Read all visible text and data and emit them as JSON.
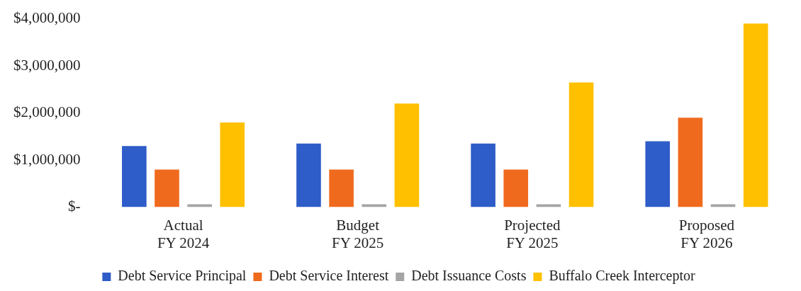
{
  "chart_data": {
    "type": "bar",
    "categories": [
      "Actual\nFY 2024",
      "Budget\nFY 2025",
      "Projected\nFY 2025",
      "Proposed\nFY 2026"
    ],
    "series": [
      {
        "name": "Debt Service Principal",
        "color": "#2e5cc8",
        "values": [
          1300000,
          1350000,
          1350000,
          1400000
        ]
      },
      {
        "name": "Debt Service Interest",
        "color": "#f06a1e",
        "values": [
          800000,
          800000,
          800000,
          1900000
        ]
      },
      {
        "name": "Debt Issuance Costs",
        "color": "#a5a5a5",
        "values": [
          0,
          0,
          0,
          0
        ]
      },
      {
        "name": "Buffalo Creek Interceptor",
        "color": "#ffc000",
        "values": [
          1800000,
          2200000,
          2650000,
          3900000
        ]
      }
    ],
    "ylim": [
      0,
      4000000
    ],
    "yticks": [
      {
        "value": 0,
        "label": "$-"
      },
      {
        "value": 1000000,
        "label": "$1,000,000"
      },
      {
        "value": 2000000,
        "label": "$2,000,000"
      },
      {
        "value": 3000000,
        "label": "$3,000,000"
      },
      {
        "value": 4000000,
        "label": "$4,000,000"
      }
    ],
    "grid": false,
    "legend": "bottom"
  }
}
